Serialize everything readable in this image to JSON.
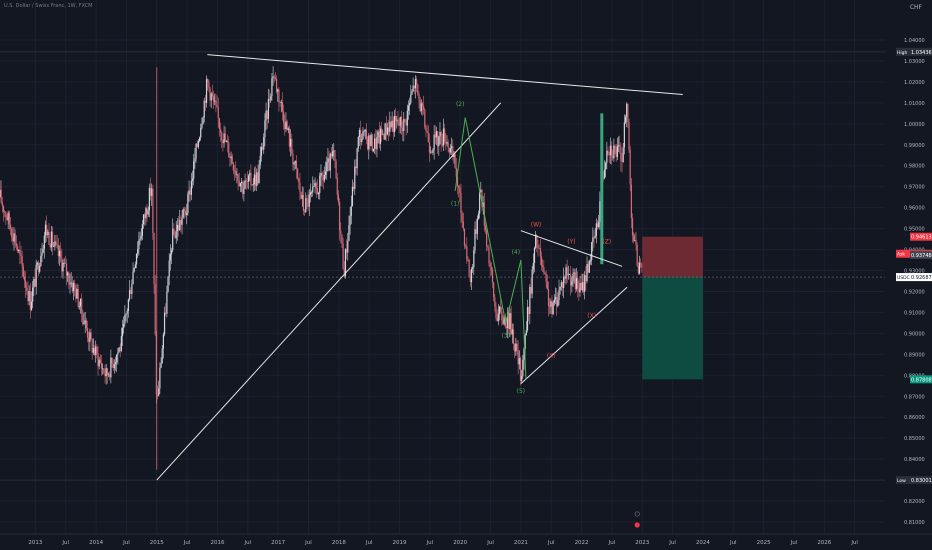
{
  "header": {
    "symbol_title": "U.S. Dollar / Swiss Franc, 1W, FXCM",
    "currency": "CHF"
  },
  "colors": {
    "background": "#131722",
    "up_candle": "#d1d4dc",
    "down_candle": "#d86b76",
    "trendline": "#e8e8e8",
    "elliott_green": "#4caf50",
    "elliott_red": "#ef5350",
    "stop_zone": "#6d2a33",
    "target_zone": "#0e4b40",
    "price_line": "#d1d4dc"
  },
  "chart_data": {
    "type": "candlestick",
    "title": "",
    "xlabel": "",
    "ylabel": "",
    "ylim": [
      0.8115,
      1.0412
    ],
    "x_range": [
      "2012-06",
      "2027-01"
    ],
    "x_tick_labels": [
      "2013",
      "Jul",
      "2014",
      "Jul",
      "2015",
      "Jul",
      "2016",
      "Jul",
      "2017",
      "Jul",
      "2018",
      "Jul",
      "2019",
      "Jul",
      "2020",
      "Jul",
      "2021",
      "Jul",
      "2022",
      "Jul",
      "2023",
      "Jul",
      "2024",
      "Jul",
      "2025",
      "Jul",
      "2026",
      "Jul"
    ],
    "x_tick_dates": [
      "2013-01",
      "2013-07",
      "2014-01",
      "2014-07",
      "2015-01",
      "2015-07",
      "2016-01",
      "2016-07",
      "2017-01",
      "2017-07",
      "2018-01",
      "2018-07",
      "2019-01",
      "2019-07",
      "2020-01",
      "2020-07",
      "2021-01",
      "2021-07",
      "2022-01",
      "2022-07",
      "2023-01",
      "2023-07",
      "2024-01",
      "2024-07",
      "2025-01",
      "2025-07",
      "2026-01",
      "2026-07"
    ],
    "y_ticks": [
      "1.04000",
      "1.03000",
      "1.02000",
      "1.01000",
      "1.00000",
      "0.99000",
      "0.98000",
      "0.97000",
      "0.96000",
      "0.95000",
      "0.94000",
      "0.93000",
      "0.92000",
      "0.91000",
      "0.90000",
      "0.89000",
      "0.88000",
      "0.87000",
      "0.86000",
      "0.85000",
      "0.84000",
      "0.83000",
      "0.82000",
      "0.81000"
    ],
    "price_path": [
      [
        "2012-06",
        0.965
      ],
      [
        "2012-09",
        0.945
      ],
      [
        "2012-12",
        0.915
      ],
      [
        "2013-03",
        0.95
      ],
      [
        "2013-06",
        0.935
      ],
      [
        "2013-09",
        0.92
      ],
      [
        "2013-12",
        0.895
      ],
      [
        "2014-03",
        0.88
      ],
      [
        "2014-06",
        0.895
      ],
      [
        "2014-09",
        0.94
      ],
      [
        "2014-12",
        0.97
      ],
      [
        "2015-01",
        0.865
      ],
      [
        "2015-04",
        0.945
      ],
      [
        "2015-07",
        0.96
      ],
      [
        "2015-11",
        1.02
      ],
      [
        "2016-02",
        0.995
      ],
      [
        "2016-06",
        0.97
      ],
      [
        "2016-09",
        0.975
      ],
      [
        "2016-12",
        1.025
      ],
      [
        "2017-03",
        0.995
      ],
      [
        "2017-06",
        0.96
      ],
      [
        "2017-09",
        0.97
      ],
      [
        "2017-12",
        0.985
      ],
      [
        "2018-02",
        0.93
      ],
      [
        "2018-05",
        0.995
      ],
      [
        "2018-08",
        0.99
      ],
      [
        "2018-11",
        1.0
      ],
      [
        "2019-02",
        1.0
      ],
      [
        "2019-04",
        1.02
      ],
      [
        "2019-07",
        0.99
      ],
      [
        "2019-10",
        0.995
      ],
      [
        "2019-12",
        0.98
      ],
      [
        "2020-03",
        0.925
      ],
      [
        "2020-05",
        0.97
      ],
      [
        "2020-08",
        0.91
      ],
      [
        "2020-11",
        0.905
      ],
      [
        "2021-01",
        0.88
      ],
      [
        "2021-04",
        0.945
      ],
      [
        "2021-07",
        0.91
      ],
      [
        "2021-10",
        0.93
      ],
      [
        "2022-01",
        0.92
      ],
      [
        "2022-04",
        0.95
      ],
      [
        "2022-06",
        0.99
      ],
      [
        "2022-09",
        0.985
      ],
      [
        "2022-10",
        1.01
      ],
      [
        "2022-11",
        0.95
      ],
      [
        "2022-12",
        0.935
      ],
      [
        "2023-01",
        0.9263
      ]
    ],
    "current_price": 0.92687,
    "high": 1.03436,
    "low": 0.83001,
    "annotations": {
      "trendlines": [
        {
          "from": [
            "2015-11",
            1.033
          ],
          "to": [
            "2023-09",
            1.014
          ]
        },
        {
          "from": [
            "2015-01",
            0.83
          ],
          "to": [
            "2020-09",
            1.01
          ]
        },
        {
          "from": [
            "2021-01",
            0.876
          ],
          "to": [
            "2022-10",
            0.922
          ]
        },
        {
          "from": [
            "2021-01",
            0.949
          ],
          "to": [
            "2022-09",
            0.932
          ]
        }
      ],
      "impulse_path": [
        [
          "2019-12",
          0.968
        ],
        [
          "2020-02",
          1.003
        ],
        [
          "2020-10",
          0.905
        ],
        [
          "2021-01",
          0.935
        ],
        [
          "2021-02",
          0.878
        ]
      ],
      "wave_labels": [
        {
          "text": "(1)",
          "date": "2019-12",
          "price": 0.961,
          "color": "green"
        },
        {
          "text": "(2)",
          "date": "2020-01",
          "price": 1.0085,
          "color": "green"
        },
        {
          "text": "(3)",
          "date": "2020-10",
          "price": 0.898,
          "color": "green"
        },
        {
          "text": "(4)",
          "date": "2020-12",
          "price": 0.938,
          "color": "green"
        },
        {
          "text": "(5)",
          "date": "2021-01",
          "price": 0.8715,
          "color": "green"
        },
        {
          "text": "(W)",
          "date": "2021-04",
          "price": 0.951,
          "color": "red"
        },
        {
          "text": "(X)",
          "date": "2021-07",
          "price": 0.8885,
          "color": "red"
        },
        {
          "text": "(Y)",
          "date": "2021-11",
          "price": 0.943,
          "color": "red"
        },
        {
          "text": "(X)",
          "date": "2022-03",
          "price": 0.9075,
          "color": "red"
        },
        {
          "text": "(Z)",
          "date": "2022-06",
          "price": 0.943,
          "color": "red"
        }
      ],
      "position": {
        "start": "2023-01",
        "end": "2024-01",
        "entry": 0.92687,
        "stop": 0.94613,
        "target": 0.87808
      }
    },
    "price_scale_labels": [
      {
        "text": "High",
        "value": "1.03436",
        "price": 1.03436,
        "kind": "high"
      },
      {
        "text": "Ask",
        "value": "0.93801",
        "price": 0.93801,
        "kind": "ask"
      },
      {
        "text": "",
        "value": "0.94613",
        "price": 0.94613,
        "kind": "stop"
      },
      {
        "text": "",
        "value": "0.93748",
        "price": 0.93748,
        "kind": "plain"
      },
      {
        "text": "Bid",
        "value": "0.92687",
        "price": 0.92687,
        "kind": "bid"
      },
      {
        "text": "USDCHF",
        "value": "0.92687",
        "price": 0.92687,
        "kind": "symbol"
      },
      {
        "text": "",
        "value": "0.87808",
        "price": 0.87808,
        "kind": "target"
      },
      {
        "text": "Low",
        "value": "0.83001",
        "price": 0.83001,
        "kind": "low"
      }
    ]
  }
}
